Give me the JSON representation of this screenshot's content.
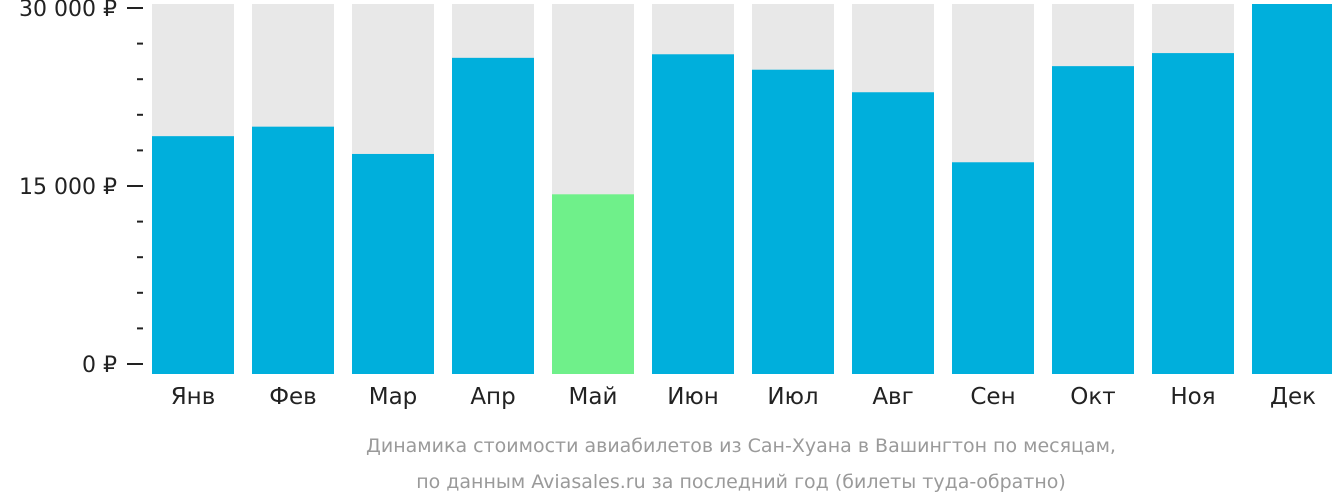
{
  "chart_data": {
    "type": "bar",
    "categories": [
      "Янв",
      "Фев",
      "Мар",
      "Апр",
      "Май",
      "Июн",
      "Июл",
      "Авг",
      "Сен",
      "Окт",
      "Ноя",
      "Дек"
    ],
    "values": [
      19200,
      20000,
      17700,
      25800,
      14300,
      26100,
      24800,
      22900,
      17000,
      25100,
      26200,
      30500
    ],
    "highlight_index": 4,
    "ylim": [
      0,
      30000
    ],
    "y_ticks": [
      0,
      15000,
      30000
    ],
    "y_tick_labels": [
      "0 ₽",
      "15 000 ₽",
      "30 000 ₽"
    ],
    "grid": false,
    "legend": "none",
    "colors": {
      "bar": "#00afdc",
      "highlight": "#6ff08a",
      "background_bar": "#e8e8e8",
      "axis": "#222222",
      "caption": "#9a9a9a"
    },
    "caption_lines": [
      "Динамика стоимости авиабилетов из Сан-Хуана в Вашингтон по месяцам,",
      "по данным Aviasales.ru за последний год (билеты туда-обратно)"
    ]
  }
}
